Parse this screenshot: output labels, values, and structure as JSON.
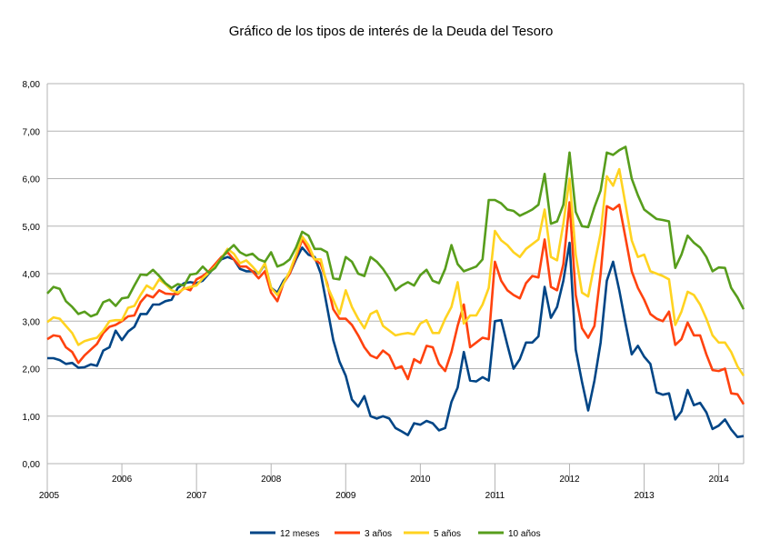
{
  "chart_data": {
    "type": "line",
    "title": "Gráfico de los tipos de interés de la Deuda del Tesoro",
    "xlabel": "",
    "ylabel": "",
    "ylim": [
      0,
      8
    ],
    "y_ticks": [
      "0,00",
      "1,00",
      "2,00",
      "3,00",
      "4,00",
      "5,00",
      "6,00",
      "7,00",
      "8,00"
    ],
    "x_ticks": [
      "2005",
      "2006",
      "2007",
      "2008",
      "2009",
      "2010",
      "2011",
      "2012",
      "2013",
      "2014"
    ],
    "x_start": "2005-01",
    "x_frequency": "monthly",
    "grid": true,
    "legend_position": "bottom",
    "series": [
      {
        "name": "12 meses",
        "color": "#004586",
        "values": [
          2.22,
          2.22,
          2.18,
          2.1,
          2.12,
          2.02,
          2.03,
          2.09,
          2.06,
          2.38,
          2.45,
          2.8,
          2.6,
          2.78,
          2.88,
          3.15,
          3.15,
          3.35,
          3.35,
          3.42,
          3.45,
          3.7,
          3.8,
          3.82,
          3.8,
          3.85,
          4.0,
          4.15,
          4.3,
          4.35,
          4.3,
          4.1,
          4.05,
          4.05,
          4.0,
          4.2,
          3.7,
          3.6,
          3.85,
          4.0,
          4.3,
          4.55,
          4.4,
          4.35,
          4.0,
          3.3,
          2.6,
          2.15,
          1.85,
          1.35,
          1.2,
          1.42,
          1.0,
          0.95,
          1.0,
          0.95,
          0.75,
          0.68,
          0.6,
          0.85,
          0.82,
          0.9,
          0.85,
          0.7,
          0.75,
          1.3,
          1.6,
          2.35,
          1.75,
          1.73,
          1.82,
          1.75,
          3.0,
          3.02,
          2.5,
          2.0,
          2.2,
          2.55,
          2.55,
          2.68,
          3.72,
          3.07,
          3.3,
          3.85,
          4.65,
          2.4,
          1.72,
          1.12,
          1.75,
          2.55,
          3.85,
          4.25,
          3.65,
          2.95,
          2.3,
          2.48,
          2.25,
          2.1,
          1.5,
          1.45,
          1.48,
          0.93,
          1.1,
          1.55,
          1.23,
          1.28,
          1.08,
          0.73,
          0.8,
          0.93,
          0.72,
          0.56,
          0.58
        ]
      },
      {
        "name": "3 años",
        "color": "#ff420e",
        "values": [
          2.62,
          2.7,
          2.68,
          2.45,
          2.35,
          2.12,
          2.28,
          2.4,
          2.52,
          2.75,
          2.88,
          2.92,
          3.0,
          3.1,
          3.12,
          3.4,
          3.55,
          3.5,
          3.65,
          3.58,
          3.57,
          3.57,
          3.7,
          3.65,
          3.88,
          3.95,
          4.05,
          4.2,
          4.35,
          4.45,
          4.3,
          4.15,
          4.15,
          4.05,
          3.9,
          4.05,
          3.6,
          3.42,
          3.8,
          4.0,
          4.35,
          4.72,
          4.5,
          4.3,
          4.2,
          3.8,
          3.25,
          3.05,
          3.05,
          2.92,
          2.7,
          2.45,
          2.28,
          2.22,
          2.38,
          2.28,
          2.0,
          2.05,
          1.78,
          2.2,
          2.12,
          2.48,
          2.45,
          2.1,
          1.95,
          2.35,
          2.9,
          3.35,
          2.45,
          2.55,
          2.65,
          2.62,
          4.25,
          3.85,
          3.65,
          3.55,
          3.48,
          3.8,
          3.95,
          3.92,
          4.72,
          3.72,
          3.65,
          4.2,
          5.5,
          3.55,
          2.85,
          2.65,
          2.9,
          4.0,
          5.42,
          5.35,
          5.45,
          4.75,
          4.05,
          3.7,
          3.45,
          3.15,
          3.05,
          3.0,
          3.2,
          2.5,
          2.62,
          2.97,
          2.7,
          2.7,
          2.3,
          1.97,
          1.95,
          2.0,
          1.48,
          1.46,
          1.25
        ]
      },
      {
        "name": "5 años",
        "color": "#ffd320",
        "values": [
          2.98,
          3.08,
          3.05,
          2.9,
          2.75,
          2.5,
          2.58,
          2.62,
          2.65,
          2.8,
          3.0,
          3.02,
          3.02,
          3.28,
          3.32,
          3.55,
          3.75,
          3.67,
          3.88,
          3.78,
          3.65,
          3.6,
          3.68,
          3.72,
          3.75,
          3.9,
          4.02,
          4.15,
          4.32,
          4.52,
          4.42,
          4.22,
          4.28,
          4.15,
          4.0,
          4.22,
          3.7,
          3.55,
          3.8,
          4.05,
          4.4,
          4.78,
          4.6,
          4.3,
          4.3,
          3.75,
          3.45,
          3.15,
          3.65,
          3.3,
          3.05,
          2.85,
          3.15,
          3.22,
          2.9,
          2.8,
          2.7,
          2.73,
          2.75,
          2.72,
          2.95,
          3.02,
          2.75,
          2.75,
          3.05,
          3.3,
          3.82,
          2.95,
          3.12,
          3.12,
          3.35,
          3.7,
          4.9,
          4.7,
          4.6,
          4.45,
          4.35,
          4.52,
          4.62,
          4.72,
          5.35,
          4.35,
          4.28,
          5.05,
          6.0,
          4.4,
          3.6,
          3.52,
          4.2,
          4.85,
          6.05,
          5.85,
          6.2,
          5.45,
          4.7,
          4.35,
          4.4,
          4.05,
          4.0,
          3.95,
          3.88,
          2.92,
          3.2,
          3.62,
          3.55,
          3.35,
          3.05,
          2.7,
          2.55,
          2.55,
          2.35,
          2.05,
          1.85
        ]
      },
      {
        "name": "10 años",
        "color": "#579d1c",
        "values": [
          3.58,
          3.72,
          3.68,
          3.42,
          3.3,
          3.15,
          3.2,
          3.1,
          3.15,
          3.4,
          3.45,
          3.32,
          3.48,
          3.5,
          3.75,
          3.98,
          3.97,
          4.08,
          3.95,
          3.8,
          3.7,
          3.78,
          3.75,
          3.98,
          4.0,
          4.15,
          4.02,
          4.12,
          4.32,
          4.48,
          4.6,
          4.45,
          4.38,
          4.42,
          4.3,
          4.25,
          4.45,
          4.15,
          4.2,
          4.3,
          4.55,
          4.88,
          4.8,
          4.52,
          4.52,
          4.45,
          3.9,
          3.88,
          4.35,
          4.25,
          4.0,
          3.95,
          4.35,
          4.25,
          4.1,
          3.9,
          3.65,
          3.75,
          3.82,
          3.75,
          3.97,
          4.08,
          3.85,
          3.8,
          4.1,
          4.6,
          4.2,
          4.05,
          4.1,
          4.15,
          4.3,
          5.55,
          5.55,
          5.48,
          5.35,
          5.32,
          5.22,
          5.28,
          5.35,
          5.45,
          6.1,
          5.05,
          5.1,
          5.45,
          6.55,
          5.3,
          5.0,
          4.98,
          5.4,
          5.75,
          6.55,
          6.5,
          6.6,
          6.67,
          6.0,
          5.65,
          5.35,
          5.25,
          5.15,
          5.13,
          5.1,
          4.12,
          4.4,
          4.8,
          4.65,
          4.55,
          4.35,
          4.05,
          4.13,
          4.12,
          3.7,
          3.5,
          3.25
        ]
      }
    ]
  }
}
